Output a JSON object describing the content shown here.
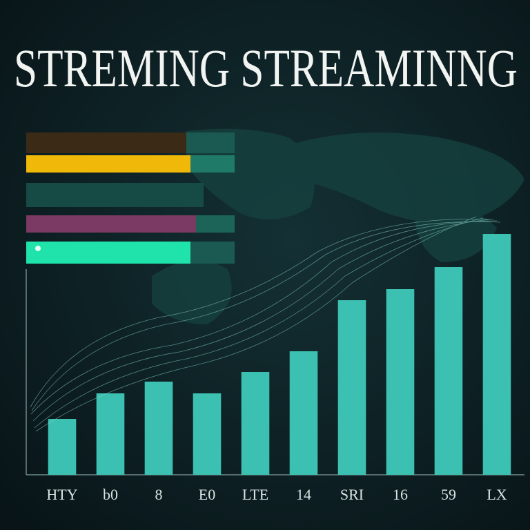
{
  "chart_data": {
    "type": "bar",
    "title": "STREMING STREAMINNG",
    "categories": [
      "HTY",
      "b0",
      "8",
      "E0",
      "LTE",
      "14",
      "SRI",
      "16",
      "59",
      "LX"
    ],
    "values": [
      81,
      118,
      135,
      118,
      149,
      179,
      253,
      269,
      301,
      349
    ],
    "color": "#3cc0b1",
    "ylim": [
      0,
      400
    ]
  }
}
